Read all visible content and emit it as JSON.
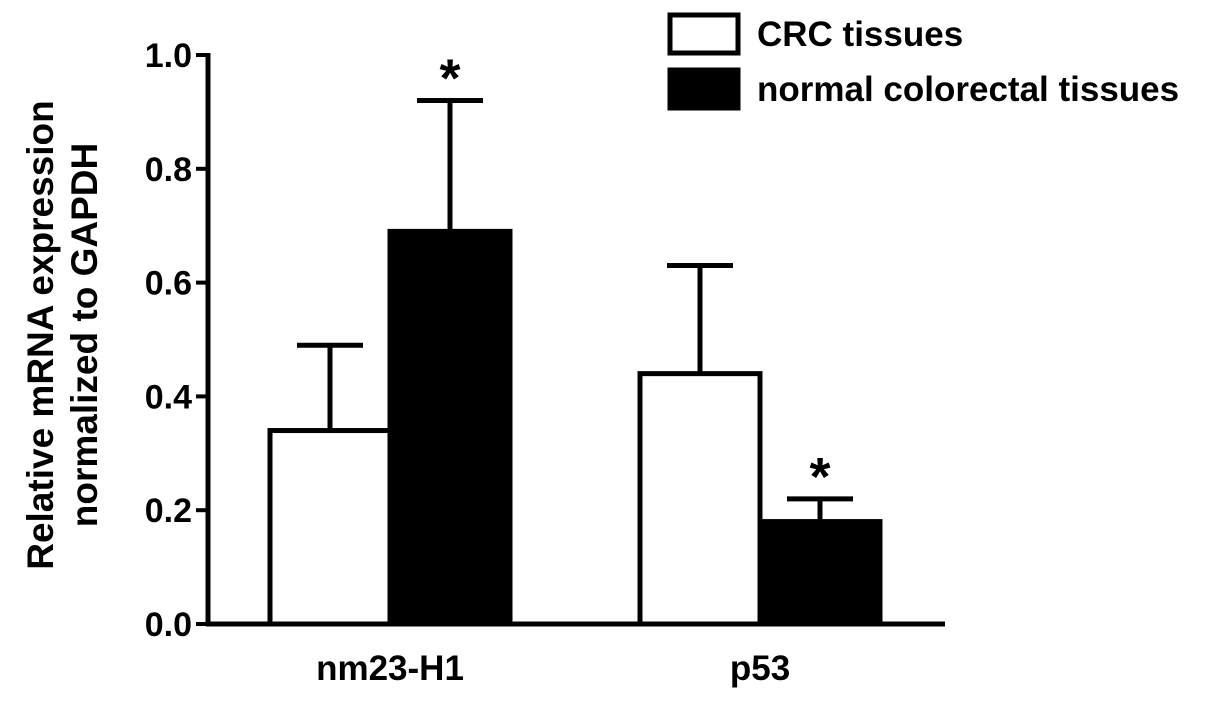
{
  "chart_data": {
    "type": "bar",
    "title": "",
    "xlabel": "",
    "ylabel": [
      "Relative mRNA expression",
      "normalized to GAPDH"
    ],
    "ylim": [
      0,
      1.0
    ],
    "yticks": [
      0.0,
      0.2,
      0.4,
      0.6,
      0.8,
      1.0
    ],
    "ytick_labels": [
      "0.0",
      "0.2",
      "0.4",
      "0.6",
      "0.8",
      "1.0"
    ],
    "categories": [
      "nm23-H1",
      "p53"
    ],
    "series": [
      {
        "name": "CRC tissues",
        "fill": "#ffffff",
        "values": [
          0.34,
          0.44
        ],
        "error_upper": [
          0.49,
          0.63
        ],
        "significance": [
          "",
          ""
        ]
      },
      {
        "name": "normal colorectal tissues",
        "fill": "#000000",
        "values": [
          0.69,
          0.18
        ],
        "error_upper": [
          0.92,
          0.22
        ],
        "significance": [
          "*",
          "*"
        ]
      }
    ],
    "legend_position": "top-right",
    "grid": false
  }
}
